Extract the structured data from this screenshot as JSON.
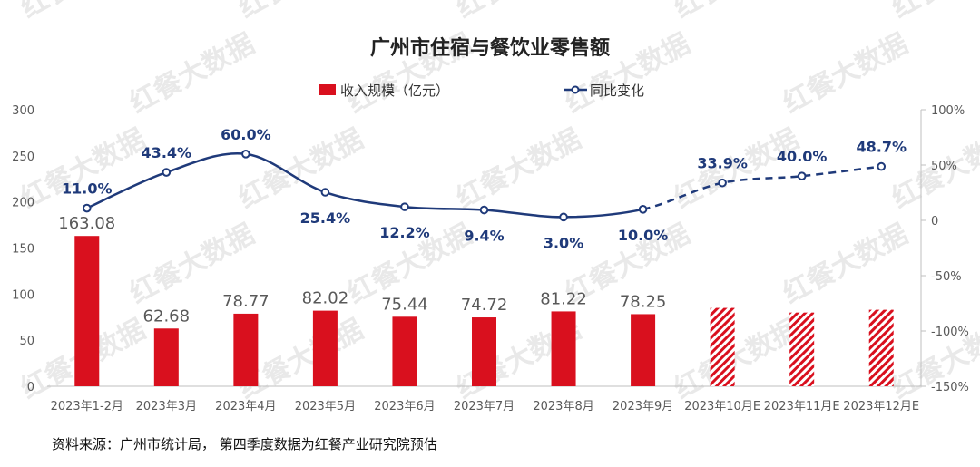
{
  "chart_data": {
    "type": "bar",
    "title": "广州市住宿与餐饮业零售额",
    "categories": [
      "2023年1-2月",
      "2023年3月",
      "2023年4月",
      "2023年5月",
      "2023年6月",
      "2023年7月",
      "2023年8月",
      "2023年9月",
      "2023年10月E",
      "2023年11月E",
      "2023年12月E"
    ],
    "series": [
      {
        "name": "收入规模（亿元）",
        "kind": "bar",
        "axis": "left",
        "color": "#d9101e",
        "values": [
          163.08,
          62.68,
          78.77,
          82.02,
          75.44,
          74.72,
          81.22,
          78.25,
          85,
          80,
          83
        ],
        "labels": [
          "163.08",
          "62.68",
          "78.77",
          "82.02",
          "75.44",
          "74.72",
          "81.22",
          "78.25",
          "",
          "",
          ""
        ],
        "estimated": [
          false,
          false,
          false,
          false,
          false,
          false,
          false,
          false,
          true,
          true,
          true
        ]
      },
      {
        "name": "同比变化",
        "kind": "line",
        "axis": "right",
        "color": "#1f3a7a",
        "values": [
          11.0,
          43.4,
          60.0,
          25.4,
          12.2,
          9.4,
          3.0,
          10.0,
          33.9,
          40.0,
          48.7
        ],
        "labels": [
          "11.0%",
          "43.4%",
          "60.0%",
          "25.4%",
          "12.2%",
          "9.4%",
          "3.0%",
          "10.0%",
          "33.9%",
          "40.0%",
          "48.7%"
        ],
        "label_side": [
          "above",
          "above",
          "above",
          "below",
          "below",
          "below",
          "below",
          "below",
          "above",
          "above",
          "above"
        ],
        "estimated": [
          false,
          false,
          false,
          false,
          false,
          false,
          false,
          false,
          true,
          true,
          true
        ]
      }
    ],
    "y_left": {
      "min": 0,
      "max": 300,
      "ticks": [
        0,
        50,
        100,
        150,
        200,
        250,
        300
      ],
      "tick_labels": [
        "0",
        "50",
        "100",
        "150",
        "200",
        "250",
        "300"
      ]
    },
    "y_right": {
      "min": -150,
      "max": 100,
      "ticks": [
        -150,
        -100,
        -50,
        0,
        50,
        100
      ],
      "tick_labels": [
        "-150%",
        "-100%",
        "-50%",
        "0",
        "50%",
        "100%"
      ]
    },
    "legend_position": "top-center",
    "grid": false
  },
  "source_note": "资料来源：广州市统计局， 第四季度数据为红餐产业研究院预估",
  "watermark": "红餐大数据"
}
